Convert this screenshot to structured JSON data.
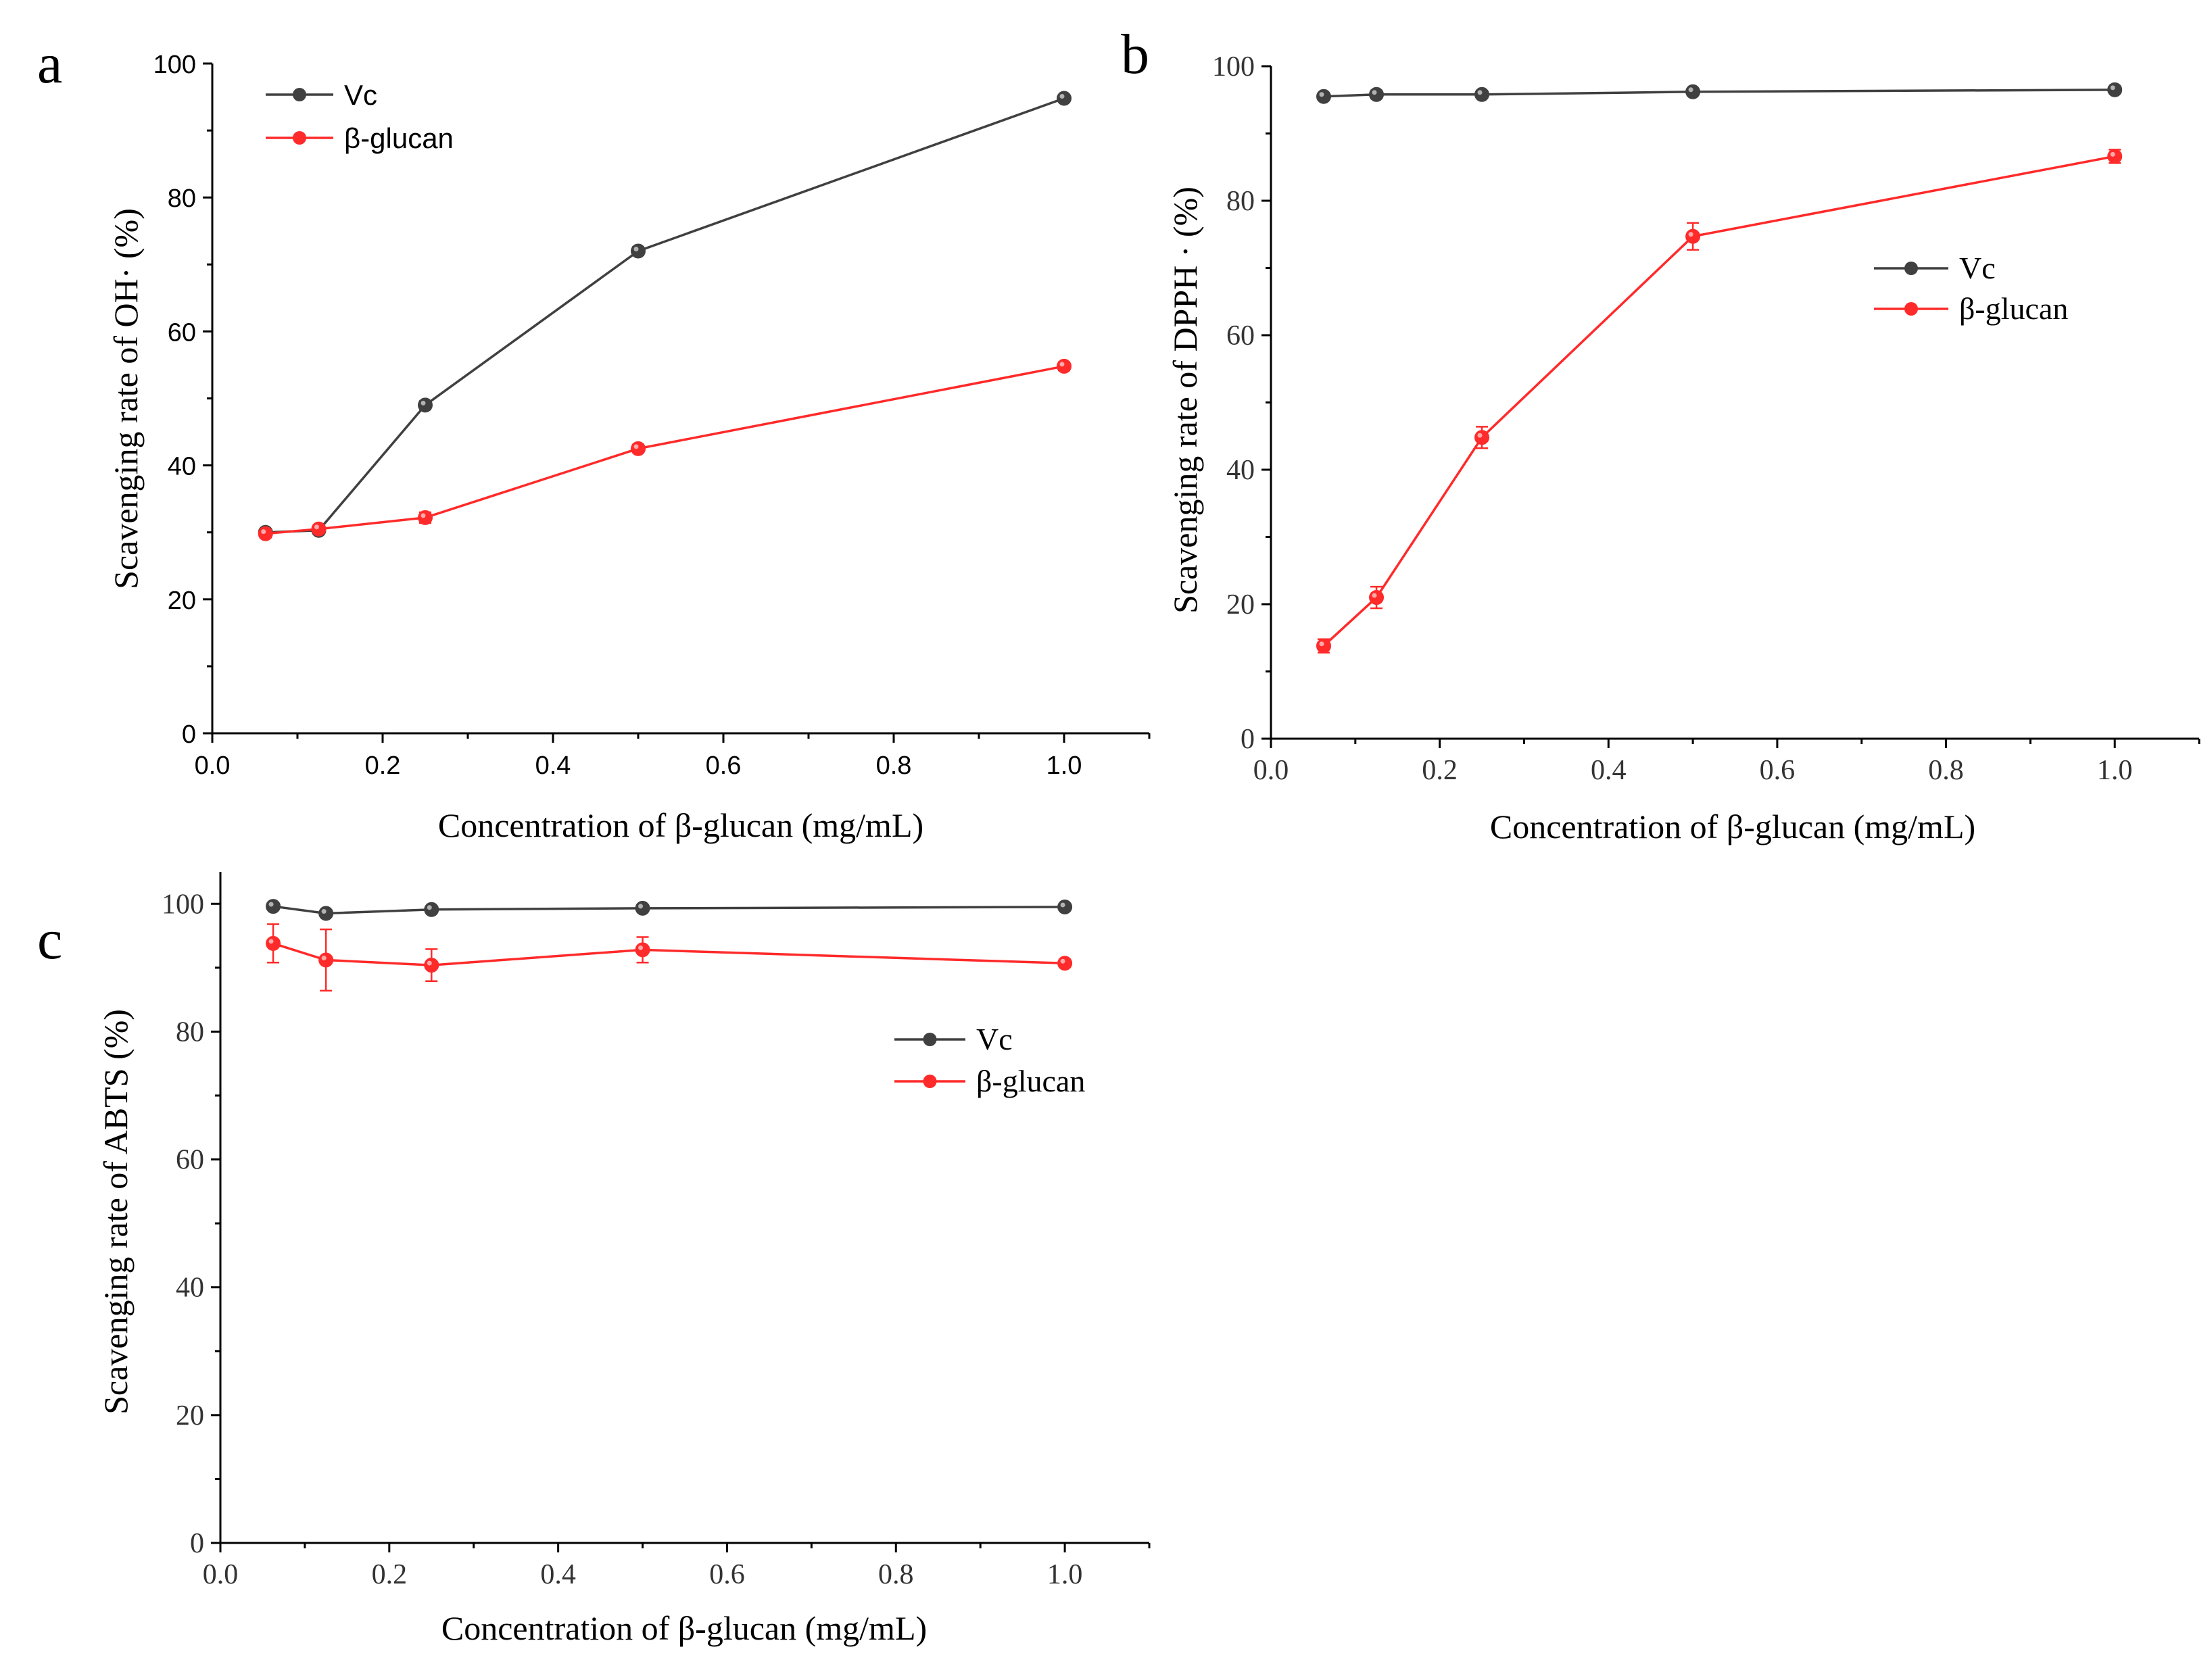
{
  "chart_data": [
    {
      "panel": "a",
      "type": "line",
      "xlabel": "Concentration of β-glucan (mg/mL)",
      "ylabel": "Scavenging rate of OH· (%)",
      "xlim": [
        0.0,
        1.1
      ],
      "ylim": [
        0,
        100
      ],
      "xticks": [
        "0.0",
        "0.2",
        "0.4",
        "0.6",
        "0.8",
        "1.0"
      ],
      "yticks": [
        "0",
        "20",
        "40",
        "60",
        "80",
        "100"
      ],
      "legend": "top-left",
      "x": [
        0.0625,
        0.125,
        0.25,
        0.5,
        1.0
      ],
      "series": [
        {
          "name": "Vc",
          "color": "#404040",
          "values": [
            30.0,
            30.3,
            49.0,
            72.0,
            94.8
          ],
          "errors": [
            0.5,
            0.5,
            0.6,
            0.6,
            0.5
          ]
        },
        {
          "name": "β-glucan",
          "color": "#ff2a2a",
          "values": [
            29.8,
            30.5,
            32.2,
            42.5,
            54.8
          ],
          "errors": [
            0.6,
            0.6,
            0.8,
            0.6,
            0.6
          ]
        }
      ]
    },
    {
      "panel": "b",
      "type": "line",
      "xlabel": "Concentration of β-glucan (mg/mL)",
      "ylabel": "Scavenging rate of DPPH · (%)",
      "xlim": [
        0.0,
        1.1
      ],
      "ylim": [
        0,
        100
      ],
      "xticks": [
        "0.0",
        "0.2",
        "0.4",
        "0.6",
        "0.8",
        "1.0"
      ],
      "yticks": [
        "0",
        "20",
        "40",
        "60",
        "80",
        "100"
      ],
      "legend": "right",
      "x": [
        0.0625,
        0.125,
        0.25,
        0.5,
        1.0
      ],
      "series": [
        {
          "name": "Vc",
          "color": "#404040",
          "values": [
            95.5,
            95.8,
            95.8,
            96.2,
            96.5
          ],
          "errors": [
            0.4,
            0.6,
            0.4,
            0.5,
            0.3
          ]
        },
        {
          "name": "β-glucan",
          "color": "#ff2a2a",
          "values": [
            13.8,
            21.0,
            44.8,
            74.7,
            86.6
          ],
          "errors": [
            1.0,
            1.6,
            1.6,
            2.0,
            1.0
          ]
        }
      ]
    },
    {
      "panel": "c",
      "type": "line",
      "xlabel": "Concentration of β-glucan (mg/mL)",
      "ylabel": "Scavenging rate of ABTS (%)",
      "xlim": [
        0.0,
        1.1
      ],
      "ylim": [
        0,
        105
      ],
      "xticks": [
        "0.0",
        "0.2",
        "0.4",
        "0.6",
        "0.8",
        "1.0"
      ],
      "yticks": [
        "0",
        "20",
        "40",
        "60",
        "80",
        "100"
      ],
      "legend": "right",
      "x": [
        0.0625,
        0.125,
        0.25,
        0.5,
        1.0
      ],
      "series": [
        {
          "name": "Vc",
          "color": "#404040",
          "values": [
            99.6,
            98.5,
            99.1,
            99.3,
            99.5
          ],
          "errors": [
            0.3,
            0.5,
            0.3,
            0.3,
            0.3
          ]
        },
        {
          "name": "β-glucan",
          "color": "#ff2a2a",
          "values": [
            93.8,
            91.2,
            90.4,
            92.8,
            90.7
          ],
          "errors": [
            3.0,
            4.8,
            2.5,
            2.0,
            0.6
          ]
        }
      ]
    }
  ]
}
